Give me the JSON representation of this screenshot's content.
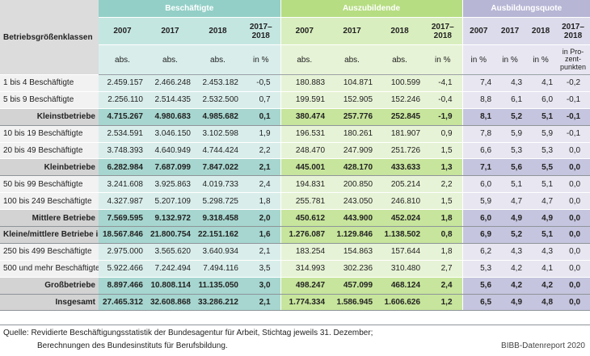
{
  "header": {
    "row_label": "Betriebsgrößenklassen",
    "groups": [
      {
        "name": "Beschäftigte",
        "cols": [
          "2007",
          "2017",
          "2018",
          "2017–\n2018"
        ],
        "units": [
          "abs.",
          "abs.",
          "abs.",
          "in %"
        ]
      },
      {
        "name": "Auszubildende",
        "cols": [
          "2007",
          "2017",
          "2018",
          "2017–\n2018"
        ],
        "units": [
          "abs.",
          "abs.",
          "abs.",
          "in %"
        ]
      },
      {
        "name": "Ausbildungsquote",
        "cols": [
          "2007",
          "2017",
          "2018",
          "2017–\n2018"
        ],
        "units": [
          "in %",
          "in %",
          "in %",
          "in Pro-\nzent-\npunkten"
        ]
      }
    ]
  },
  "rows": [
    {
      "label": "1 bis 4 Beschäftigte",
      "sum": false,
      "values": [
        "2.459.157",
        "2.466.248",
        "2.453.182",
        "-0,5",
        "180.883",
        "104.871",
        "100.599",
        "-4,1",
        "7,4",
        "4,3",
        "4,1",
        "-0,2"
      ]
    },
    {
      "label": "5 bis 9 Beschäftigte",
      "sum": false,
      "values": [
        "2.256.110",
        "2.514.435",
        "2.532.500",
        "0,7",
        "199.591",
        "152.905",
        "152.246",
        "-0,4",
        "8,8",
        "6,1",
        "6,0",
        "-0,1"
      ]
    },
    {
      "label": "Kleinstbetriebe",
      "sum": true,
      "values": [
        "4.715.267",
        "4.980.683",
        "4.985.682",
        "0,1",
        "380.474",
        "257.776",
        "252.845",
        "-1,9",
        "8,1",
        "5,2",
        "5,1",
        "-0,1"
      ]
    },
    {
      "label": "10 bis 19 Beschäftigte",
      "sum": false,
      "values": [
        "2.534.591",
        "3.046.150",
        "3.102.598",
        "1,9",
        "196.531",
        "180.261",
        "181.907",
        "0,9",
        "7,8",
        "5,9",
        "5,9",
        "-0,1"
      ]
    },
    {
      "label": "20 bis 49 Beschäftigte",
      "sum": false,
      "values": [
        "3.748.393",
        "4.640.949",
        "4.744.424",
        "2,2",
        "248.470",
        "247.909",
        "251.726",
        "1,5",
        "6,6",
        "5,3",
        "5,3",
        "0,0"
      ]
    },
    {
      "label": "Kleinbetriebe",
      "sum": true,
      "values": [
        "6.282.984",
        "7.687.099",
        "7.847.022",
        "2,1",
        "445.001",
        "428.170",
        "433.633",
        "1,3",
        "7,1",
        "5,6",
        "5,5",
        "0,0"
      ]
    },
    {
      "label": "50 bis 99 Beschäftigte",
      "sum": false,
      "values": [
        "3.241.608",
        "3.925.863",
        "4.019.733",
        "2,4",
        "194.831",
        "200.850",
        "205.214",
        "2,2",
        "6,0",
        "5,1",
        "5,1",
        "0,0"
      ]
    },
    {
      "label": "100 bis 249 Beschäftigte",
      "sum": false,
      "values": [
        "4.327.987",
        "5.207.109",
        "5.298.725",
        "1,8",
        "255.781",
        "243.050",
        "246.810",
        "1,5",
        "5,9",
        "4,7",
        "4,7",
        "0,0"
      ]
    },
    {
      "label": "Mittlere Betriebe",
      "sum": true,
      "values": [
        "7.569.595",
        "9.132.972",
        "9.318.458",
        "2,0",
        "450.612",
        "443.900",
        "452.024",
        "1,8",
        "6,0",
        "4,9",
        "4,9",
        "0,0"
      ]
    },
    {
      "label": "Kleine/mittlere Betriebe insg.",
      "sum": true,
      "values": [
        "18.567.846",
        "21.800.754",
        "22.151.162",
        "1,6",
        "1.276.087",
        "1.129.846",
        "1.138.502",
        "0,8",
        "6,9",
        "5,2",
        "5,1",
        "0,0"
      ]
    },
    {
      "label": "250 bis 499 Beschäftigte",
      "sum": false,
      "values": [
        "2.975.000",
        "3.565.620",
        "3.640.934",
        "2,1",
        "183.254",
        "154.863",
        "157.644",
        "1,8",
        "6,2",
        "4,3",
        "4,3",
        "0,0"
      ]
    },
    {
      "label": "500 und mehr Beschäftigte",
      "sum": false,
      "values": [
        "5.922.466",
        "7.242.494",
        "7.494.116",
        "3,5",
        "314.993",
        "302.236",
        "310.480",
        "2,7",
        "5,3",
        "4,2",
        "4,1",
        "0,0"
      ]
    },
    {
      "label": "Großbetriebe",
      "sum": true,
      "values": [
        "8.897.466",
        "10.808.114",
        "11.135.050",
        "3,0",
        "498.247",
        "457.099",
        "468.124",
        "2,4",
        "5,6",
        "4,2",
        "4,2",
        "0,0"
      ]
    },
    {
      "label": "Insgesamt",
      "sum": true,
      "values": [
        "27.465.312",
        "32.608.868",
        "33.286.212",
        "2,1",
        "1.774.334",
        "1.586.945",
        "1.606.626",
        "1,2",
        "6,5",
        "4,9",
        "4,8",
        "0,0"
      ]
    }
  ],
  "footer": {
    "source_line1": "Quelle: Revidierte Beschäftigungsstatistik der Bundesagentur für Arbeit, Stichtag jeweils 31. Dezember;",
    "source_line2": "Berechnungen des Bundesinstituts für Berufsbildung.",
    "credit": "BIBB-Datenreport 2020"
  }
}
